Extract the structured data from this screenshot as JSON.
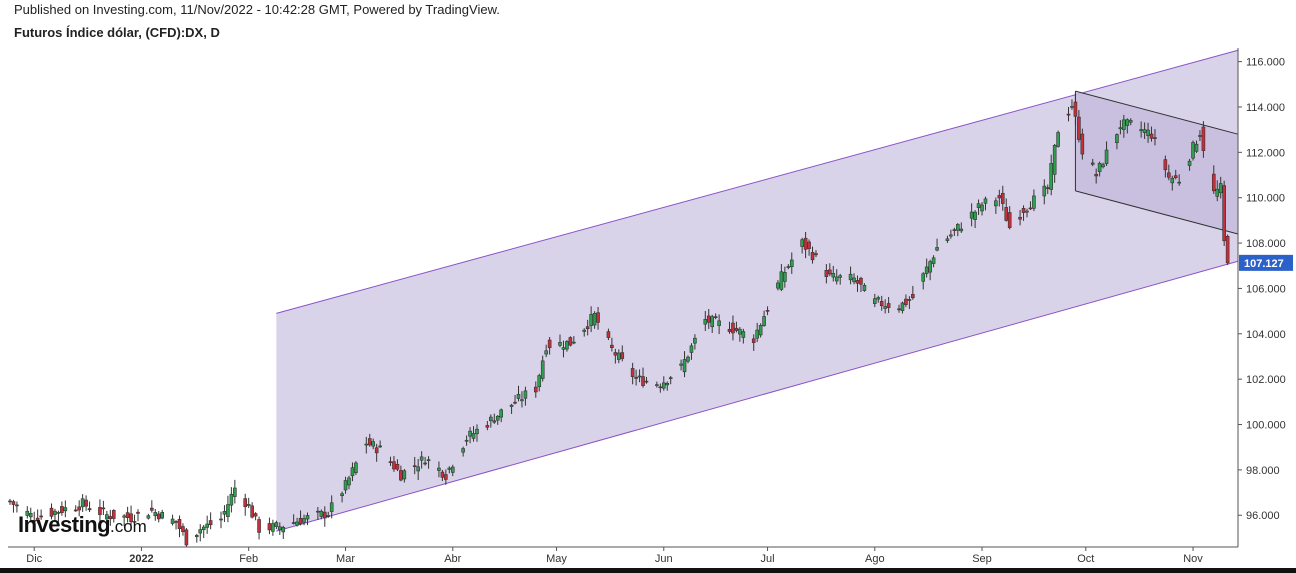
{
  "header": {
    "published": "Published on Investing.com, 11/Nov/2022 - 10:42:28 GMT, Powered by TradingView.",
    "symbol": "Futuros Índice dólar, (CFD):DX, D"
  },
  "logo": {
    "main": "Investing",
    "suffix": ".com"
  },
  "colors": {
    "up": "#2e9e4f",
    "down": "#c62f3a",
    "wick": "#333333",
    "channel_fill": "#d9d3ea",
    "channel_line": "#8a52c8",
    "inner_fill": "#c5bcdd",
    "inner_line": "#333333",
    "last_price_bg": "#2a62c9"
  },
  "chart_data": {
    "type": "candlestick",
    "interval": "D",
    "ylim": [
      94.6,
      116.6
    ],
    "y_ticks": [
      "96.000",
      "98.000",
      "100.000",
      "102.000",
      "104.000",
      "106.000",
      "108.000",
      "110.000",
      "112.000",
      "114.000",
      "116.000"
    ],
    "x_ticks": [
      {
        "label": "Dic",
        "bold": false
      },
      {
        "label": "2022",
        "bold": true
      },
      {
        "label": "Feb",
        "bold": false
      },
      {
        "label": "Mar",
        "bold": false
      },
      {
        "label": "Abr",
        "bold": false
      },
      {
        "label": "May",
        "bold": false
      },
      {
        "label": "Jun",
        "bold": false
      },
      {
        "label": "Jul",
        "bold": false
      },
      {
        "label": "Ago",
        "bold": false
      },
      {
        "label": "Sep",
        "bold": false
      },
      {
        "label": "Oct",
        "bold": false
      },
      {
        "label": "Nov",
        "bold": false
      }
    ],
    "last_price": "107.127",
    "close_path": [
      [
        "2021-11-24",
        96.6
      ],
      [
        "2021-12-01",
        95.9
      ],
      [
        "2021-12-08",
        96.2
      ],
      [
        "2021-12-15",
        96.5
      ],
      [
        "2021-12-22",
        96.0
      ],
      [
        "2021-12-29",
        95.9
      ],
      [
        "2022-01-04",
        96.2
      ],
      [
        "2022-01-11",
        95.7
      ],
      [
        "2022-01-14",
        94.9
      ],
      [
        "2022-01-18",
        95.4
      ],
      [
        "2022-01-24",
        95.8
      ],
      [
        "2022-01-28",
        97.2
      ],
      [
        "2022-02-01",
        96.4
      ],
      [
        "2022-02-04",
        95.4
      ],
      [
        "2022-02-10",
        95.5
      ],
      [
        "2022-02-16",
        95.8
      ],
      [
        "2022-02-24",
        96.1
      ],
      [
        "2022-03-01",
        97.3
      ],
      [
        "2022-03-07",
        99.2
      ],
      [
        "2022-03-11",
        98.9
      ],
      [
        "2022-03-17",
        97.8
      ],
      [
        "2022-03-24",
        98.5
      ],
      [
        "2022-03-30",
        97.8
      ],
      [
        "2022-04-05",
        99.4
      ],
      [
        "2022-04-13",
        100.3
      ],
      [
        "2022-04-19",
        101.0
      ],
      [
        "2022-04-25",
        101.6
      ],
      [
        "2022-04-28",
        103.5
      ],
      [
        "2022-05-05",
        103.6
      ],
      [
        "2022-05-12",
        104.8
      ],
      [
        "2022-05-17",
        103.3
      ],
      [
        "2022-05-24",
        102.0
      ],
      [
        "2022-05-31",
        101.8
      ],
      [
        "2022-06-06",
        102.5
      ],
      [
        "2022-06-13",
        104.6
      ],
      [
        "2022-06-20",
        104.3
      ],
      [
        "2022-06-27",
        103.8
      ],
      [
        "2022-07-05",
        106.5
      ],
      [
        "2022-07-11",
        108.0
      ],
      [
        "2022-07-14",
        107.5
      ],
      [
        "2022-07-19",
        106.5
      ],
      [
        "2022-07-26",
        106.4
      ],
      [
        "2022-08-01",
        105.4
      ],
      [
        "2022-08-08",
        105.2
      ],
      [
        "2022-08-12",
        105.6
      ],
      [
        "2022-08-19",
        107.8
      ],
      [
        "2022-08-26",
        108.8
      ],
      [
        "2022-09-01",
        109.7
      ],
      [
        "2022-09-06",
        110.0
      ],
      [
        "2022-09-09",
        108.7
      ],
      [
        "2022-09-13",
        109.5
      ],
      [
        "2022-09-20",
        110.4
      ],
      [
        "2022-09-23",
        113.0
      ],
      [
        "2022-09-27",
        114.1
      ],
      [
        "2022-09-30",
        112.1
      ],
      [
        "2022-10-04",
        111.0
      ],
      [
        "2022-10-11",
        113.2
      ],
      [
        "2022-10-14",
        113.2
      ],
      [
        "2022-10-20",
        112.8
      ],
      [
        "2022-10-25",
        110.9
      ],
      [
        "2022-10-28",
        110.8
      ],
      [
        "2022-11-03",
        112.9
      ],
      [
        "2022-11-07",
        110.2
      ],
      [
        "2022-11-09",
        110.4
      ],
      [
        "2022-11-10",
        108.0
      ],
      [
        "2022-11-11",
        107.127
      ]
    ],
    "annotations": [
      {
        "type": "parallel_channel",
        "start": [
          "2022-02-09",
          104.9
        ],
        "end": [
          "2022-11-14",
          116.5
        ],
        "lower_start": [
          "2022-02-09",
          95.3
        ],
        "lower_end": [
          "2022-11-14",
          107.2
        ]
      },
      {
        "type": "parallel_channel",
        "start": [
          "2022-09-28",
          114.7
        ],
        "end": [
          "2022-11-14",
          112.8
        ],
        "lower_start": [
          "2022-09-28",
          110.3
        ],
        "lower_end": [
          "2022-11-14",
          108.4
        ]
      }
    ]
  }
}
